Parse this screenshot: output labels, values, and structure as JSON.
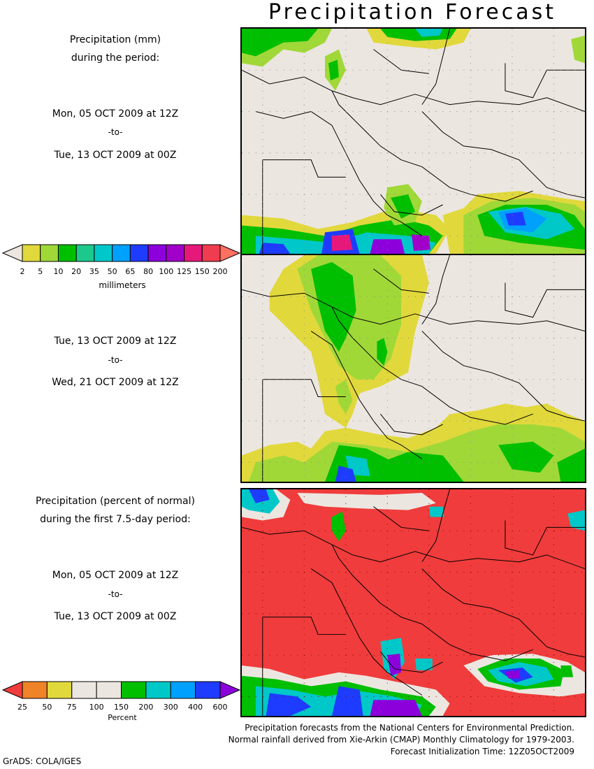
{
  "title": "Precipitation Forecast",
  "section1": {
    "heading_line1": "Precipitation (mm)",
    "heading_line2": "during the period:",
    "start": "Mon, 05 OCT 2009 at 12Z",
    "to": "-to-",
    "end": "Tue, 13 OCT 2009 at 00Z"
  },
  "section2": {
    "start": "Tue, 13 OCT 2009 at 12Z",
    "to": "-to-",
    "end": "Wed, 21 OCT 2009 at 12Z"
  },
  "section3": {
    "heading_line1": "Precipitation (percent of normal)",
    "heading_line2": "during the first 7.5-day period:",
    "start": "Mon, 05 OCT 2009 at 12Z",
    "to": "-to-",
    "end": "Tue, 13 OCT 2009 at 00Z"
  },
  "colorbar_mm": {
    "unit": "millimeters",
    "labels": [
      "2",
      "5",
      "10",
      "20",
      "35",
      "50",
      "65",
      "80",
      "100",
      "125",
      "150",
      "200"
    ],
    "colors": [
      "#ece6e0",
      "#e1d83c",
      "#a0d838",
      "#00be00",
      "#1cc88c",
      "#00c8c8",
      "#00a0ff",
      "#1e3cff",
      "#8c00dc",
      "#a000c8",
      "#e6187a",
      "#f03c50",
      "#ff7060"
    ]
  },
  "colorbar_pct": {
    "unit": "Percent",
    "labels": [
      "25",
      "50",
      "75",
      "100",
      "150",
      "200",
      "300",
      "400",
      "600"
    ],
    "colors": [
      "#f03c3c",
      "#f08228",
      "#e1d83c",
      "#ece6e0",
      "#ece6e0",
      "#00be00",
      "#00c8c8",
      "#00a0ff",
      "#1e3cff",
      "#8c00dc"
    ]
  },
  "footer": {
    "line1": "Precipitation forecasts from the National Centers for Environmental Prediction.",
    "line2": "Normal rainfall derived from Xie-Arkin (CMAP) Monthly Climatology for 1979-2003.",
    "line3": "Forecast Initialization Time: 12Z05OCT2009"
  },
  "credit": "GrADS: COLA/IGES"
}
